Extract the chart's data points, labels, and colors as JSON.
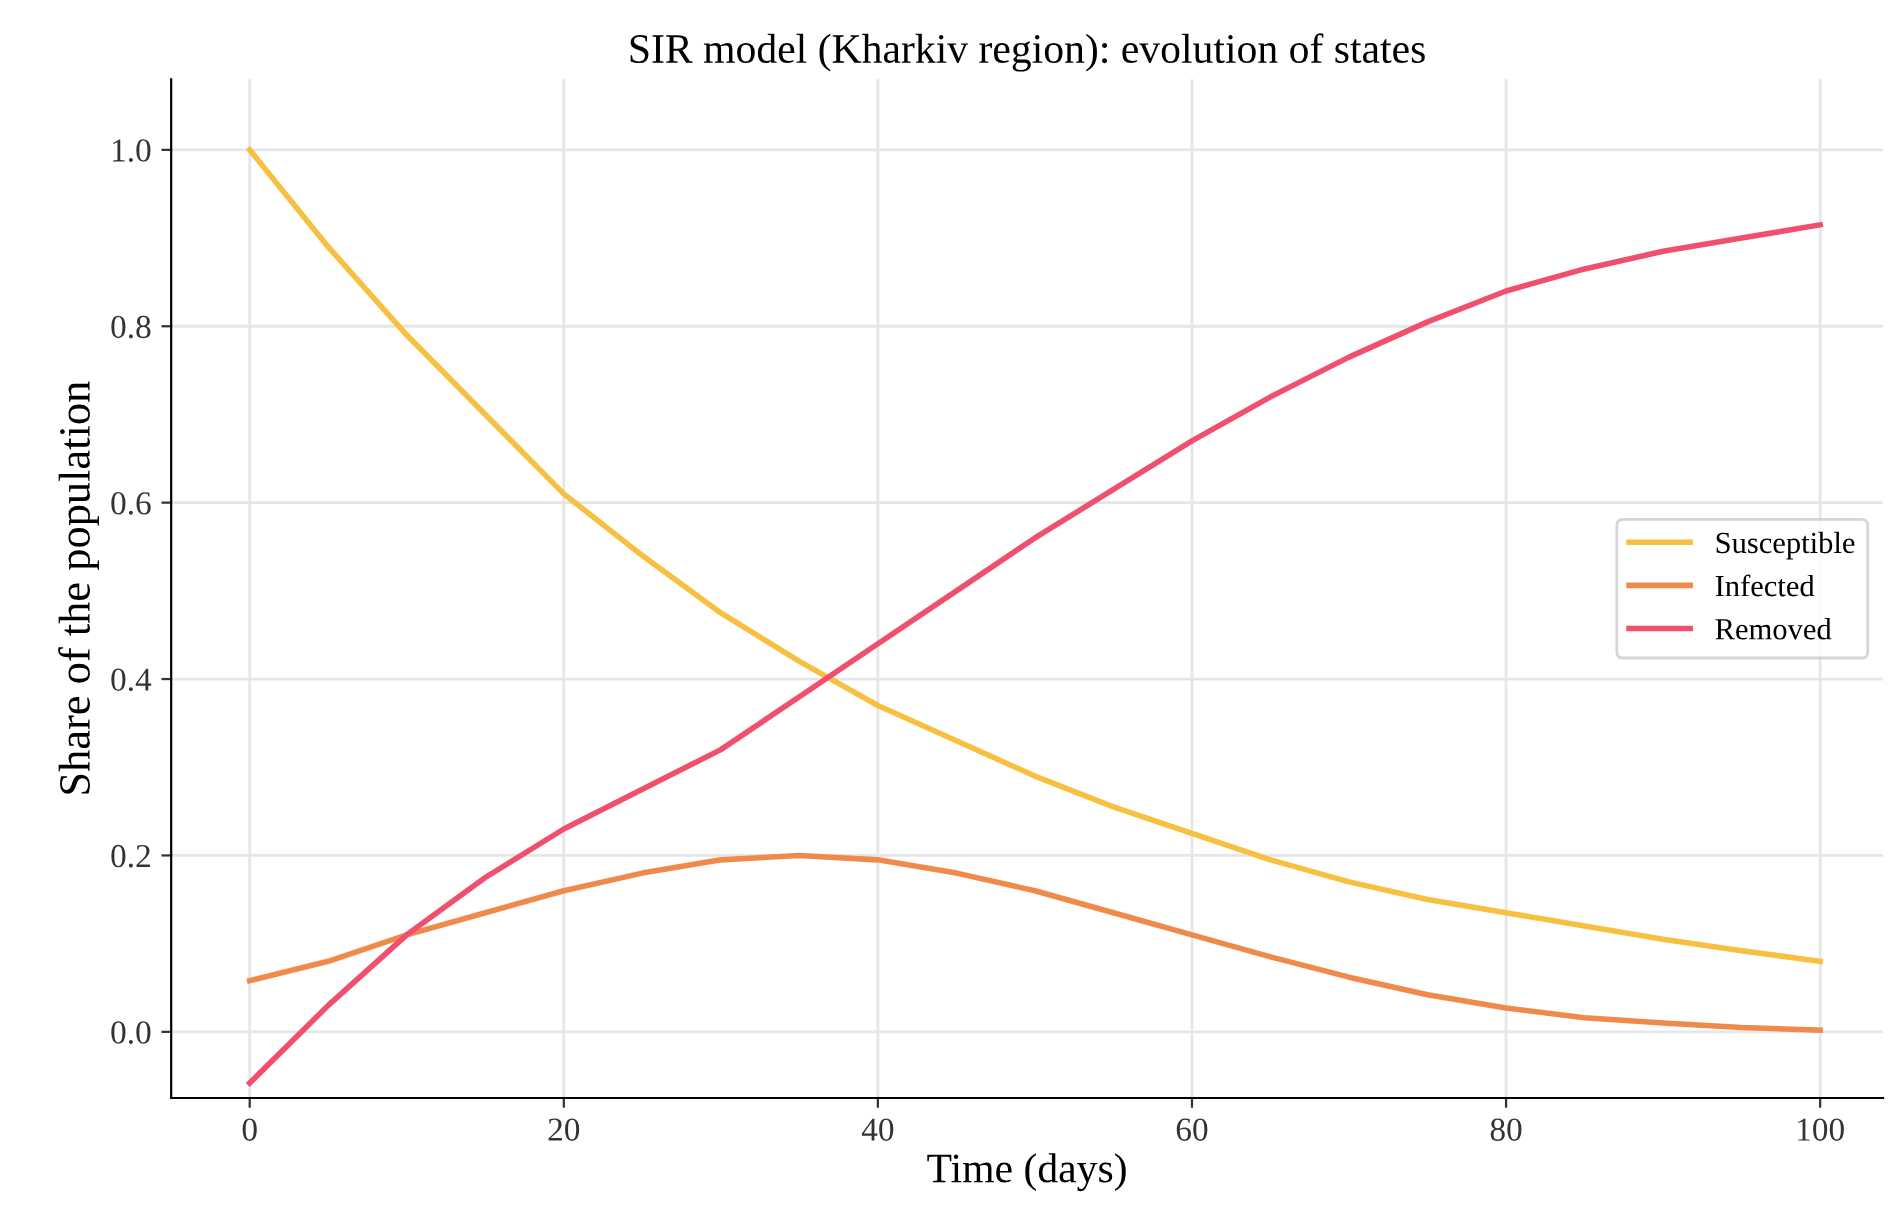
{
  "chart_data": {
    "type": "line",
    "title": "SIR model (Kharkiv region): evolution of states",
    "xlabel": "Time (days)",
    "ylabel": "Share of the population",
    "x": [
      0,
      5,
      10,
      15,
      20,
      25,
      30,
      35,
      40,
      45,
      50,
      55,
      60,
      65,
      70,
      75,
      80,
      85,
      90,
      95,
      100
    ],
    "series": [
      {
        "name": "Susceptible",
        "color": "#f7c040",
        "values": [
          1.0,
          0.89,
          0.79,
          0.7,
          0.61,
          0.54,
          0.475,
          0.42,
          0.37,
          0.33,
          0.29,
          0.255,
          0.225,
          0.195,
          0.17,
          0.15,
          0.135,
          0.12,
          0.105,
          0.092,
          0.08
        ]
      },
      {
        "name": "Infected",
        "color": "#f08a4b",
        "values": [
          0.058,
          0.08,
          0.11,
          0.135,
          0.16,
          0.18,
          0.195,
          0.2,
          0.195,
          0.18,
          0.16,
          0.135,
          0.11,
          0.085,
          0.062,
          0.042,
          0.027,
          0.016,
          0.01,
          0.005,
          0.002
        ]
      },
      {
        "name": "Removed",
        "color": "#f0506e",
        "values": [
          -0.058,
          0.03,
          0.11,
          0.175,
          0.23,
          0.275,
          0.32,
          0.38,
          0.44,
          0.5,
          0.56,
          0.615,
          0.67,
          0.72,
          0.765,
          0.805,
          0.84,
          0.865,
          0.885,
          0.9,
          0.915
        ]
      }
    ],
    "xlim": [
      -5,
      104
    ],
    "ylim": [
      -0.075,
      1.08
    ],
    "xticks": [
      0,
      20,
      40,
      60,
      80,
      100
    ],
    "yticks": [
      {
        "value": 0,
        "label": "0.0"
      },
      {
        "value": 0.2,
        "label": "0.2"
      },
      {
        "value": 0.4,
        "label": "0.4"
      },
      {
        "value": 0.6,
        "label": "0.6"
      },
      {
        "value": 0.8,
        "label": "0.8"
      },
      {
        "value": 1,
        "label": "1.0"
      }
    ],
    "grid": true,
    "legend": "center right",
    "marker": "none",
    "line_style": "solid"
  }
}
